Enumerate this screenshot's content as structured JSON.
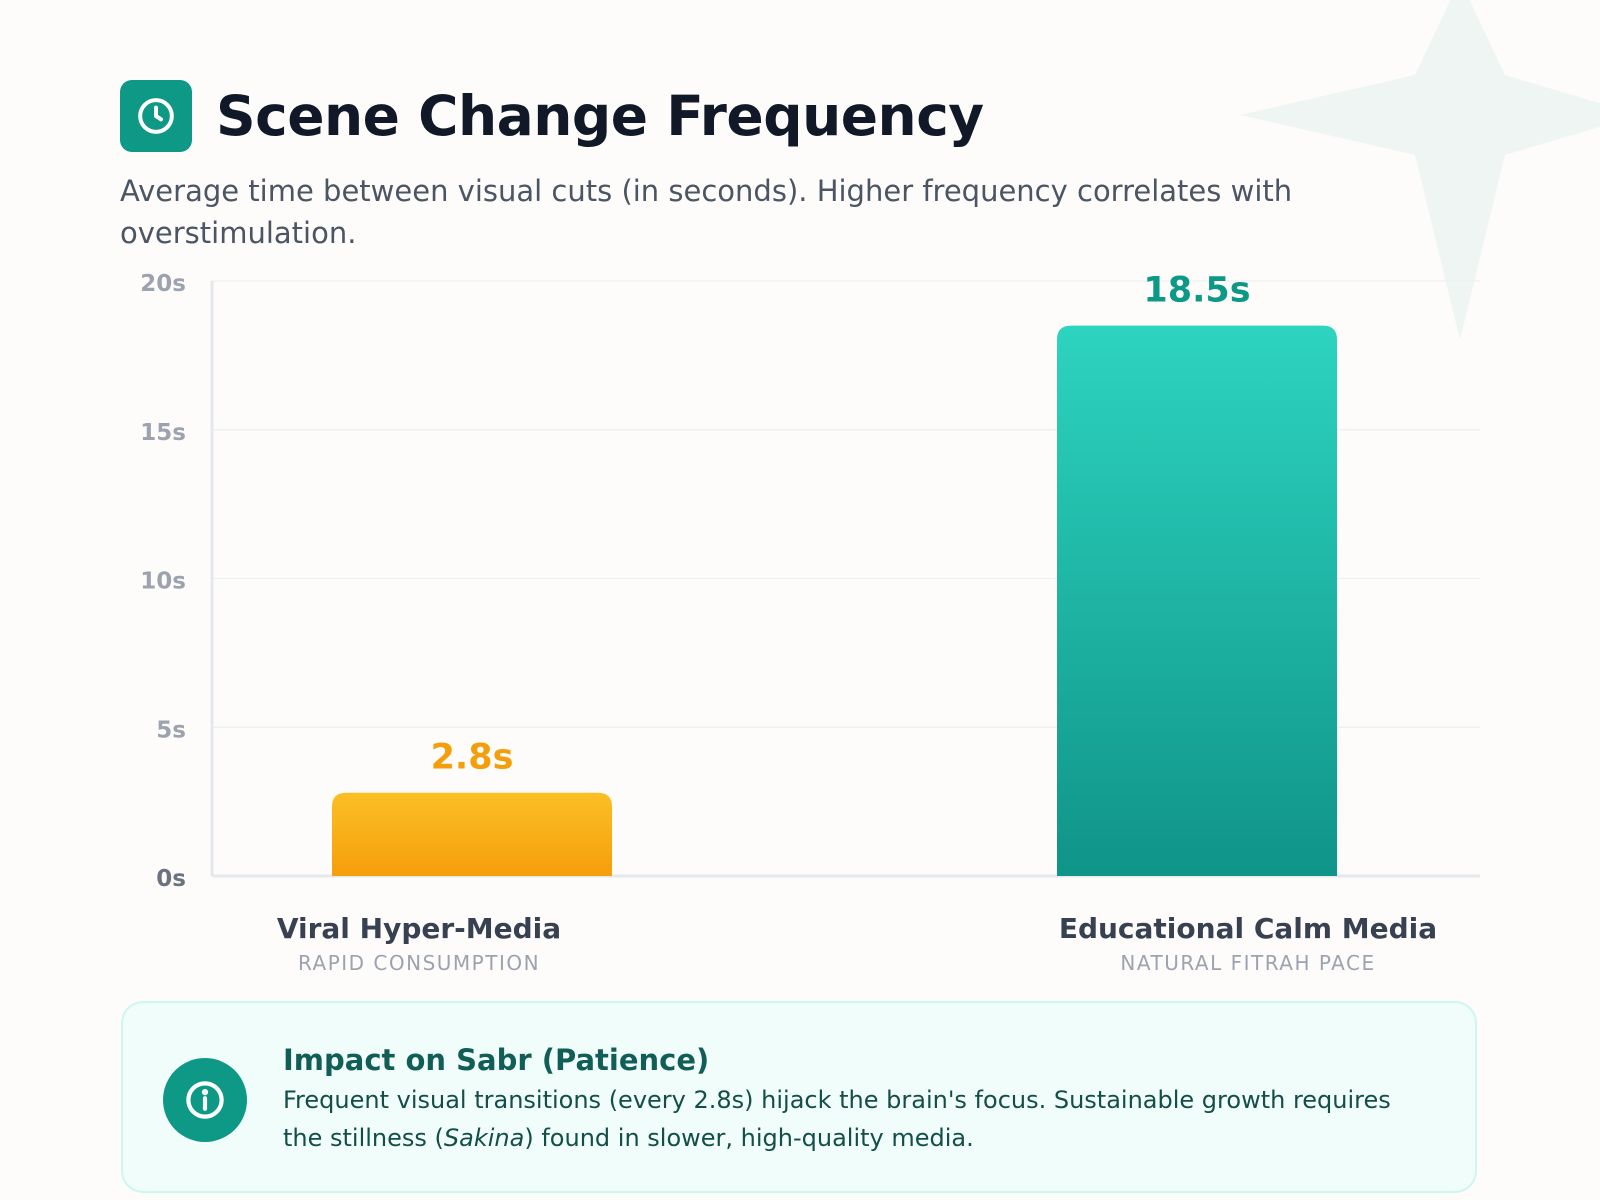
{
  "header": {
    "title": "Scene Change Frequency",
    "subtitle": "Average time between visual cuts (in seconds). Higher frequency correlates with overstimulation.",
    "icon": "clock-icon"
  },
  "chart_data": {
    "type": "bar",
    "categories": [
      "Viral Hyper-Media",
      "Educational Calm Media"
    ],
    "category_subtitles": [
      "RAPID CONSUMPTION",
      "NATURAL FITRAH PACE"
    ],
    "values": [
      2.8,
      18.5
    ],
    "data_labels": [
      "2.8s",
      "18.5s"
    ],
    "colors": [
      "#f59e0b",
      "#14a394"
    ],
    "ylim": [
      0,
      20
    ],
    "yticks": [
      0,
      5,
      10,
      15,
      20
    ],
    "ytick_labels": [
      "0s",
      "5s",
      "10s",
      "15s",
      "20s"
    ],
    "grid": true
  },
  "callout": {
    "icon": "info-icon",
    "title": "Impact on Sabr (Patience)",
    "text_before": "Frequent visual transitions (every 2.8s) hijack the brain's focus. Sustainable growth requires the stillness (",
    "text_italic": "Sakina",
    "text_after": ") found in slower, high-quality media."
  }
}
